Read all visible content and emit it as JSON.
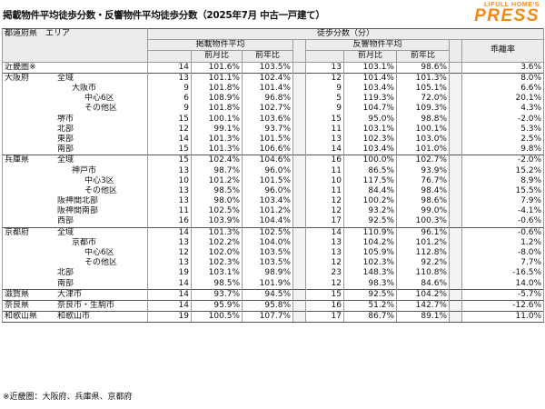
{
  "title": "掲載物件平均徒歩分数・反響物件平均徒歩分数（2025年7月 中古一戸建て）",
  "brand": {
    "top": "LIFULL HOME'S",
    "main": "PRESS",
    "color": "#f08a1a"
  },
  "header": {
    "area_label": "都道府県　エリア",
    "walk_label": "徒歩分数（分）",
    "listing_label": "掲載物件平均",
    "inquiry_label": "反響物件平均",
    "gap_label": "乖離率",
    "mom_label": "前月比",
    "yoy_label": "前年比"
  },
  "rows": [
    {
      "pref": "近畿圏※",
      "area": "",
      "l": "14",
      "lm": "101.6%",
      "ly": "103.5%",
      "i": "13",
      "im": "103.1%",
      "iy": "98.6%",
      "g": "3.6%"
    },
    {
      "pref": "大阪府",
      "area": "全域",
      "l": "13",
      "lm": "101.1%",
      "ly": "102.4%",
      "i": "12",
      "im": "101.4%",
      "iy": "101.3%",
      "g": "8.0%"
    },
    {
      "pref": "",
      "area": "大阪市",
      "l": "9",
      "lm": "101.8%",
      "ly": "101.4%",
      "i": "9",
      "im": "103.4%",
      "iy": "105.1%",
      "g": "6.6%"
    },
    {
      "pref": "",
      "area": "中心6区",
      "l": "6",
      "lm": "108.9%",
      "ly": "96.8%",
      "i": "5",
      "im": "119.3%",
      "iy": "72.0%",
      "g": "20.1%"
    },
    {
      "pref": "",
      "area": "その他区",
      "l": "9",
      "lm": "101.8%",
      "ly": "102.7%",
      "i": "9",
      "im": "104.7%",
      "iy": "109.3%",
      "g": "4.3%"
    },
    {
      "pref": "",
      "area": "堺市",
      "l": "15",
      "lm": "100.1%",
      "ly": "103.6%",
      "i": "15",
      "im": "95.0%",
      "iy": "98.8%",
      "g": "-2.0%"
    },
    {
      "pref": "",
      "area": "北部",
      "l": "12",
      "lm": "99.1%",
      "ly": "93.7%",
      "i": "11",
      "im": "103.1%",
      "iy": "100.1%",
      "g": "5.3%"
    },
    {
      "pref": "",
      "area": "東部",
      "l": "14",
      "lm": "101.3%",
      "ly": "101.5%",
      "i": "13",
      "im": "102.3%",
      "iy": "103.0%",
      "g": "2.5%"
    },
    {
      "pref": "",
      "area": "南部",
      "l": "15",
      "lm": "101.3%",
      "ly": "106.6%",
      "i": "14",
      "im": "103.4%",
      "iy": "101.0%",
      "g": "9.8%"
    },
    {
      "pref": "兵庫県",
      "area": "全域",
      "l": "15",
      "lm": "102.4%",
      "ly": "104.6%",
      "i": "16",
      "im": "100.0%",
      "iy": "102.7%",
      "g": "-2.0%"
    },
    {
      "pref": "",
      "area": "神戸市",
      "l": "13",
      "lm": "98.7%",
      "ly": "96.0%",
      "i": "11",
      "im": "86.5%",
      "iy": "93.9%",
      "g": "15.2%"
    },
    {
      "pref": "",
      "area": "中心3区",
      "l": "10",
      "lm": "101.2%",
      "ly": "101.5%",
      "i": "10",
      "im": "117.5%",
      "iy": "76.7%",
      "g": "8.9%"
    },
    {
      "pref": "",
      "area": "その他区",
      "l": "13",
      "lm": "98.5%",
      "ly": "96.0%",
      "i": "11",
      "im": "84.4%",
      "iy": "98.4%",
      "g": "15.5%"
    },
    {
      "pref": "",
      "area": "阪神間北部",
      "l": "13",
      "lm": "98.0%",
      "ly": "103.4%",
      "i": "12",
      "im": "100.2%",
      "iy": "98.6%",
      "g": "7.9%"
    },
    {
      "pref": "",
      "area": "阪神間南部",
      "l": "11",
      "lm": "102.5%",
      "ly": "101.2%",
      "i": "12",
      "im": "93.2%",
      "iy": "99.0%",
      "g": "-4.1%"
    },
    {
      "pref": "",
      "area": "西部",
      "l": "16",
      "lm": "103.9%",
      "ly": "104.4%",
      "i": "17",
      "im": "92.5%",
      "iy": "100.3%",
      "g": "-0.6%"
    },
    {
      "pref": "京都府",
      "area": "全域",
      "l": "14",
      "lm": "101.3%",
      "ly": "102.5%",
      "i": "14",
      "im": "110.9%",
      "iy": "96.1%",
      "g": "-0.6%"
    },
    {
      "pref": "",
      "area": "京都市",
      "l": "13",
      "lm": "102.2%",
      "ly": "104.0%",
      "i": "13",
      "im": "104.2%",
      "iy": "101.2%",
      "g": "1.2%"
    },
    {
      "pref": "",
      "area": "中心6区",
      "l": "12",
      "lm": "102.0%",
      "ly": "103.5%",
      "i": "13",
      "im": "105.9%",
      "iy": "112.8%",
      "g": "-8.0%"
    },
    {
      "pref": "",
      "area": "その他区",
      "l": "13",
      "lm": "102.3%",
      "ly": "103.5%",
      "i": "12",
      "im": "102.3%",
      "iy": "92.2%",
      "g": "7.7%"
    },
    {
      "pref": "",
      "area": "北部",
      "l": "19",
      "lm": "103.1%",
      "ly": "98.9%",
      "i": "23",
      "im": "148.3%",
      "iy": "110.8%",
      "g": "-16.5%"
    },
    {
      "pref": "",
      "area": "南部",
      "l": "14",
      "lm": "98.5%",
      "ly": "101.9%",
      "i": "12",
      "im": "98.3%",
      "iy": "84.6%",
      "g": "14.0%"
    },
    {
      "pref": "滋賀県",
      "area": "大津市",
      "l": "14",
      "lm": "93.7%",
      "ly": "94.5%",
      "i": "15",
      "im": "92.5%",
      "iy": "104.2%",
      "g": "-5.7%"
    },
    {
      "pref": "奈良県",
      "area": "奈良市・生駒市",
      "l": "14",
      "lm": "95.9%",
      "ly": "95.8%",
      "i": "16",
      "im": "51.2%",
      "iy": "142.7%",
      "g": "-12.6%"
    },
    {
      "pref": "和歌山県",
      "area": "和歌山市",
      "l": "19",
      "lm": "100.5%",
      "ly": "107.7%",
      "i": "17",
      "im": "86.7%",
      "iy": "89.1%",
      "g": "11.0%"
    }
  ],
  "footnote": "※近畿圏：大阪府、兵庫県、京都府"
}
